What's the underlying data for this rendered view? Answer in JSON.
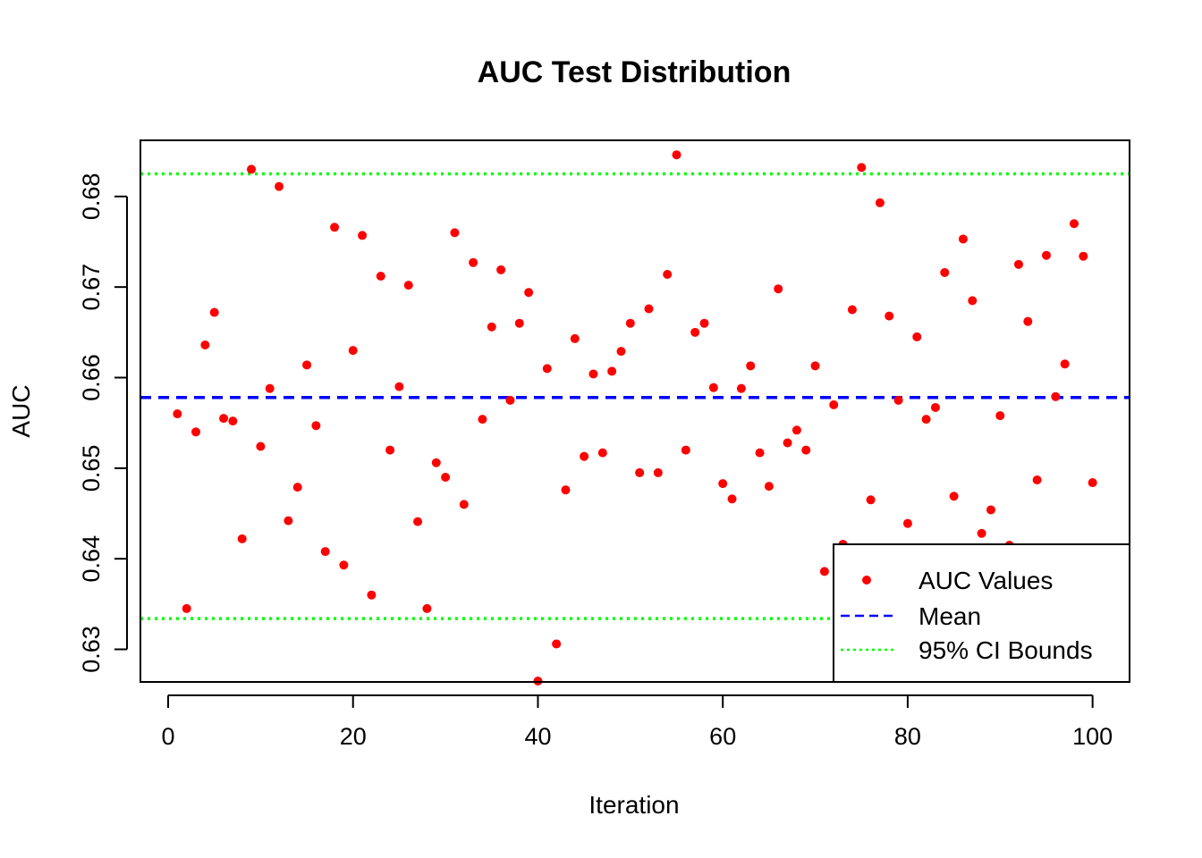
{
  "chart_data": {
    "type": "scatter",
    "title": "AUC Test Distribution",
    "xlabel": "Iteration",
    "ylabel": "AUC",
    "xlim": [
      -3,
      104
    ],
    "ylim": [
      0.6264,
      0.6862
    ],
    "x_ticks": [
      0,
      20,
      40,
      60,
      80,
      100
    ],
    "y_ticks": [
      0.63,
      0.64,
      0.65,
      0.66,
      0.67,
      0.68
    ],
    "x_tick_labels": [
      "0",
      "20",
      "40",
      "60",
      "80",
      "100"
    ],
    "y_tick_labels": [
      "0.63",
      "0.64",
      "0.65",
      "0.66",
      "0.67",
      "0.68"
    ],
    "grid": false,
    "legend_position": "bottom-right",
    "series": [
      {
        "name": "AUC Values",
        "kind": "points",
        "color": "#ff0000",
        "x": [
          1,
          2,
          3,
          4,
          5,
          6,
          7,
          8,
          9,
          10,
          11,
          12,
          13,
          14,
          15,
          16,
          17,
          18,
          19,
          20,
          21,
          22,
          23,
          24,
          25,
          26,
          27,
          28,
          29,
          30,
          31,
          32,
          33,
          34,
          35,
          36,
          37,
          38,
          39,
          40,
          41,
          42,
          43,
          44,
          45,
          46,
          47,
          48,
          49,
          50,
          51,
          52,
          53,
          54,
          55,
          56,
          57,
          58,
          59,
          60,
          61,
          62,
          63,
          64,
          65,
          66,
          67,
          68,
          69,
          70,
          71,
          72,
          73,
          74,
          75,
          76,
          77,
          78,
          79,
          80,
          81,
          82,
          83,
          84,
          85,
          86,
          87,
          88,
          89,
          90,
          91,
          92,
          93,
          94,
          95,
          96,
          97,
          98,
          99,
          100
        ],
        "y": [
          0.656,
          0.6345,
          0.654,
          0.6636,
          0.6672,
          0.6555,
          0.6552,
          0.6422,
          0.683,
          0.6524,
          0.6588,
          0.6811,
          0.6442,
          0.6479,
          0.6614,
          0.6547,
          0.6408,
          0.6766,
          0.6393,
          0.663,
          0.6757,
          0.636,
          0.6712,
          0.652,
          0.659,
          0.6702,
          0.6441,
          0.6345,
          0.6506,
          0.649,
          0.676,
          0.646,
          0.6727,
          0.6554,
          0.6656,
          0.6719,
          0.6575,
          0.666,
          0.6694,
          0.6265,
          0.661,
          0.6306,
          0.6476,
          0.6643,
          0.6513,
          0.6604,
          0.6517,
          0.6607,
          0.6629,
          0.666,
          0.6495,
          0.6676,
          0.6495,
          0.6714,
          0.6846,
          0.652,
          0.665,
          0.666,
          0.6589,
          0.6483,
          0.6466,
          0.6588,
          0.6613,
          0.6517,
          0.648,
          0.6698,
          0.6528,
          0.6542,
          0.652,
          0.6613,
          0.6386,
          0.657,
          0.6416,
          0.6675,
          0.6832,
          0.6465,
          0.6793,
          0.6668,
          0.6575,
          0.6439,
          0.6645,
          0.6554,
          0.6567,
          0.6716,
          0.6469,
          0.6753,
          0.6685,
          0.6428,
          0.6454,
          0.6558,
          0.6415,
          0.6725,
          0.6662,
          0.6487,
          0.6735,
          0.6579,
          0.6615,
          0.677,
          0.6734,
          0.6484
        ]
      },
      {
        "name": "Mean",
        "kind": "hline",
        "color": "#0000ff",
        "style": "dashed",
        "y": 0.6578
      },
      {
        "name": "95% CI Bounds",
        "kind": "hlines",
        "color": "#00ff00",
        "style": "dotted",
        "y": [
          0.6825,
          0.6334
        ]
      }
    ]
  }
}
